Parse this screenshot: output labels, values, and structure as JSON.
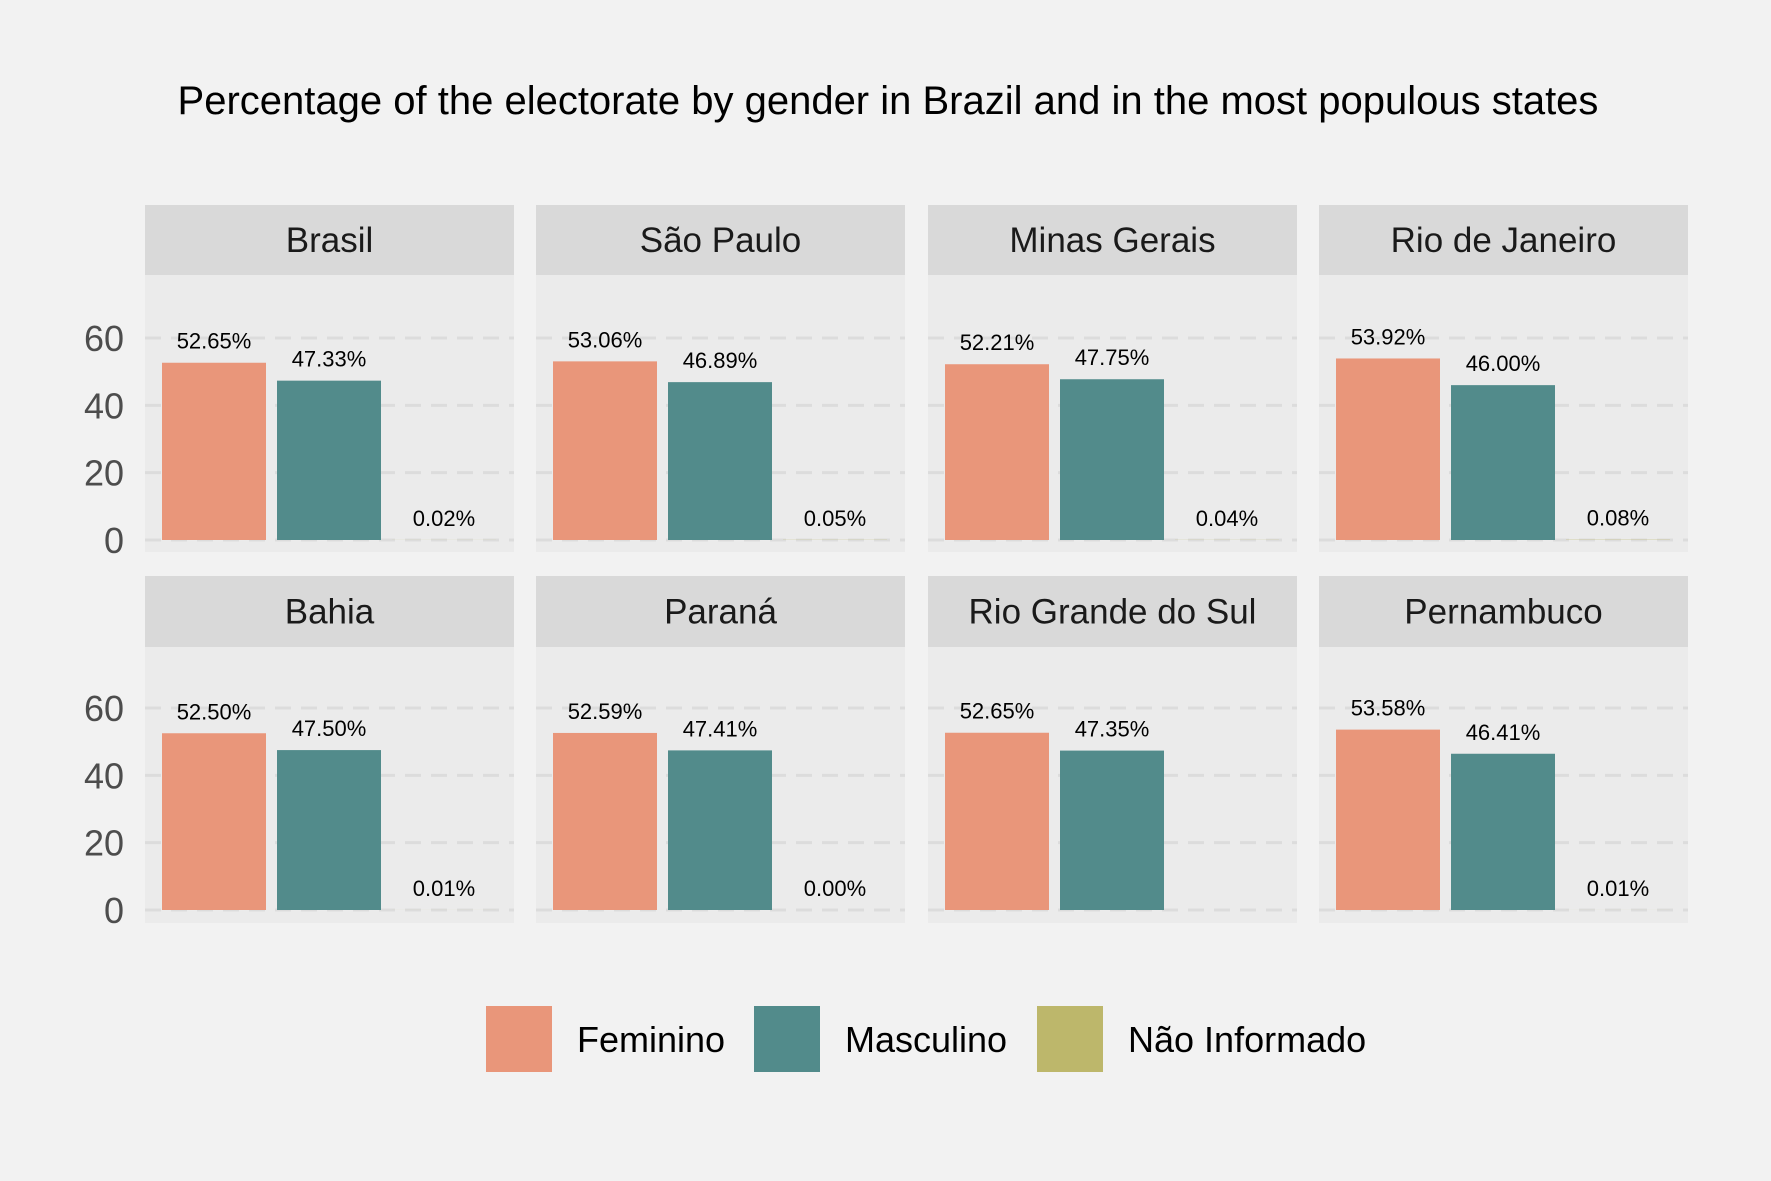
{
  "chart_data": {
    "type": "bar",
    "title": "Percentage of the electorate by gender in Brazil and in the most populous states",
    "categories": [
      "Feminino",
      "Masculino",
      "Não Informado"
    ],
    "ylim": [
      0,
      72
    ],
    "yticks": [
      "0",
      "20",
      "40",
      "60"
    ],
    "ytick_values": [
      0,
      20,
      40,
      60
    ],
    "grid": true,
    "legend_position": "bottom",
    "colors": {
      "Feminino": "#e9967a",
      "Masculino": "#528b8b",
      "Não Informado": "#bdb76b"
    },
    "panels": [
      {
        "name": "Brasil",
        "values": [
          52.65,
          47.33,
          0.02
        ],
        "labels": [
          "52.65%",
          "47.33%",
          "0.02%"
        ]
      },
      {
        "name": "São Paulo",
        "values": [
          53.06,
          46.89,
          0.05
        ],
        "labels": [
          "53.06%",
          "46.89%",
          "0.05%"
        ]
      },
      {
        "name": "Minas Gerais",
        "values": [
          52.21,
          47.75,
          0.04
        ],
        "labels": [
          "52.21%",
          "47.75%",
          "0.04%"
        ]
      },
      {
        "name": "Rio de Janeiro",
        "values": [
          53.92,
          46.0,
          0.08
        ],
        "labels": [
          "53.92%",
          "46.00%",
          "0.08%"
        ]
      },
      {
        "name": "Bahia",
        "values": [
          52.5,
          47.5,
          0.01
        ],
        "labels": [
          "52.50%",
          "47.50%",
          "0.01%"
        ]
      },
      {
        "name": "Paraná",
        "values": [
          52.59,
          47.41,
          0.0
        ],
        "labels": [
          "52.59%",
          "47.41%",
          "0.00%"
        ]
      },
      {
        "name": "Rio Grande do Sul",
        "values": [
          52.65,
          47.35,
          0.0
        ],
        "labels": [
          "52.65%",
          "47.35%",
          ""
        ]
      },
      {
        "name": "Pernambuco",
        "values": [
          53.58,
          46.41,
          0.01
        ],
        "labels": [
          "53.58%",
          "46.41%",
          "0.01%"
        ]
      }
    ]
  }
}
